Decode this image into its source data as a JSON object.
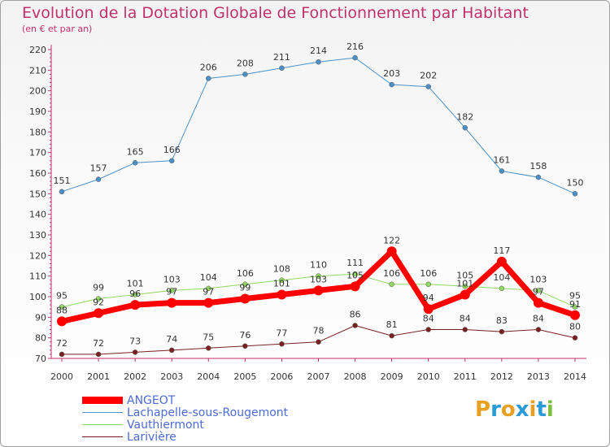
{
  "title": "Evolution de la Dotation Globale de Fonctionnement par Habitant",
  "subtitle": "(en € et par an)",
  "logo": {
    "text": "Proxiti",
    "colors": [
      "#e8a020",
      "#2a9ad8",
      "#e8a020",
      "#2a9ad8",
      "#e8a020",
      "#2a9ad8",
      "#7ac040"
    ]
  },
  "chart_data": {
    "type": "line",
    "title": "Evolution de la Dotation Globale de Fonctionnement par Habitant",
    "subtitle": "(en € et par an)",
    "xlabel": "",
    "ylabel": "",
    "ylim": [
      70,
      220
    ],
    "yticks": [
      70,
      80,
      90,
      100,
      110,
      120,
      130,
      140,
      150,
      160,
      170,
      180,
      190,
      200,
      210,
      220
    ],
    "grid": false,
    "legend_position": "bottom-left",
    "categories": [
      "2000",
      "2001",
      "2002",
      "2003",
      "2004",
      "2005",
      "2006",
      "2007",
      "2008",
      "2009",
      "2010",
      "2011",
      "2012",
      "2013",
      "2014"
    ],
    "series": [
      {
        "name": "ANGEOT",
        "color": "#ff0000",
        "values": [
          88,
          92,
          96,
          97,
          97,
          99,
          101,
          103,
          105,
          122,
          94,
          101,
          117,
          97,
          91
        ]
      },
      {
        "name": "Lachapelle-sous-Rougemont",
        "color": "#4a90c8",
        "values": [
          151,
          157,
          165,
          166,
          206,
          208,
          211,
          214,
          216,
          203,
          202,
          182,
          161,
          158,
          150
        ]
      },
      {
        "name": "Vauthiermont",
        "color": "#90d860",
        "values": [
          95,
          99,
          101,
          103,
          104,
          106,
          108,
          110,
          111,
          106,
          106,
          105,
          104,
          103,
          95
        ]
      },
      {
        "name": "Larivière",
        "color": "#7a2020",
        "values": [
          72,
          72,
          73,
          74,
          75,
          76,
          77,
          78,
          86,
          81,
          84,
          84,
          83,
          84,
          80
        ]
      }
    ]
  }
}
